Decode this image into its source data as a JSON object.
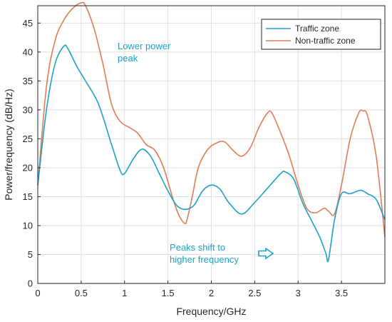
{
  "chart_data": {
    "type": "line",
    "title": "",
    "xlabel": "Frequency/GHz",
    "ylabel": "Power/frequency (dB/Hz)",
    "xlim": [
      0,
      4
    ],
    "ylim": [
      0,
      48
    ],
    "xticks": [
      0,
      0.5,
      1,
      1.5,
      2,
      2.5,
      3,
      3.5
    ],
    "xtick_labels": [
      "0",
      "0.5",
      "1",
      "1.5",
      "2",
      "2.5",
      "3",
      "3.5"
    ],
    "yticks": [
      0,
      5,
      10,
      15,
      20,
      25,
      30,
      35,
      40,
      45
    ],
    "ytick_labels": [
      "0",
      "5",
      "10",
      "15",
      "20",
      "25",
      "30",
      "35",
      "40",
      "45"
    ],
    "grid": true,
    "legend_position": "top-right",
    "series": [
      {
        "name": "Traffic zone",
        "color": "#1ba1c7",
        "x": [
          0,
          0.1,
          0.2,
          0.3,
          0.35,
          0.45,
          0.55,
          0.7,
          0.85,
          0.95,
          1.0,
          1.1,
          1.2,
          1.3,
          1.4,
          1.5,
          1.6,
          1.7,
          1.8,
          1.9,
          2.0,
          2.1,
          2.2,
          2.35,
          2.5,
          2.65,
          2.8,
          2.85,
          2.95,
          3.05,
          3.15,
          3.25,
          3.32,
          3.35,
          3.42,
          3.5,
          3.6,
          3.72,
          3.8,
          3.9,
          4.0
        ],
        "y": [
          17,
          30,
          38,
          41,
          40.5,
          37.5,
          35,
          31,
          24,
          19.5,
          19,
          21.5,
          23.2,
          22,
          19,
          16,
          13.5,
          12.8,
          13.5,
          16,
          17,
          16.3,
          14,
          12,
          14,
          16.5,
          19,
          19.3,
          18,
          14,
          11,
          8,
          5.2,
          4.1,
          11,
          15.5,
          15.5,
          16.1,
          15.5,
          14.5,
          11
        ]
      },
      {
        "name": "Non-traffic zone",
        "color": "#e07b56",
        "x": [
          0,
          0.1,
          0.2,
          0.3,
          0.4,
          0.5,
          0.55,
          0.65,
          0.75,
          0.85,
          0.95,
          1.05,
          1.15,
          1.25,
          1.35,
          1.45,
          1.55,
          1.62,
          1.69,
          1.72,
          1.78,
          1.85,
          1.95,
          2.05,
          2.15,
          2.25,
          2.35,
          2.45,
          2.55,
          2.65,
          2.7,
          2.8,
          2.9,
          3.0,
          3.1,
          3.2,
          3.3,
          3.35,
          3.42,
          3.5,
          3.6,
          3.7,
          3.75,
          3.8,
          3.9,
          4.0
        ],
        "y": [
          17,
          34,
          42,
          45.5,
          47.5,
          48.5,
          48,
          44,
          38,
          31,
          28,
          27,
          26,
          24,
          23,
          20,
          15,
          12,
          10.4,
          11,
          15,
          20,
          23,
          24.2,
          24.5,
          23,
          22,
          23.5,
          27,
          29.5,
          29.4,
          26,
          22,
          17,
          13,
          12.2,
          13,
          12.5,
          12,
          17,
          25,
          29.5,
          29.8,
          29,
          22,
          8
        ]
      }
    ],
    "annotations": [
      {
        "text_lines": [
          "Lower power",
          "peak"
        ],
        "x": 0.92,
        "y": 40.5,
        "color": "#1ba1c7"
      },
      {
        "text_lines": [
          "Peaks shift to",
          "higher frequency"
        ],
        "x": 1.52,
        "y": 5.7,
        "color": "#1ba1c7"
      }
    ]
  }
}
